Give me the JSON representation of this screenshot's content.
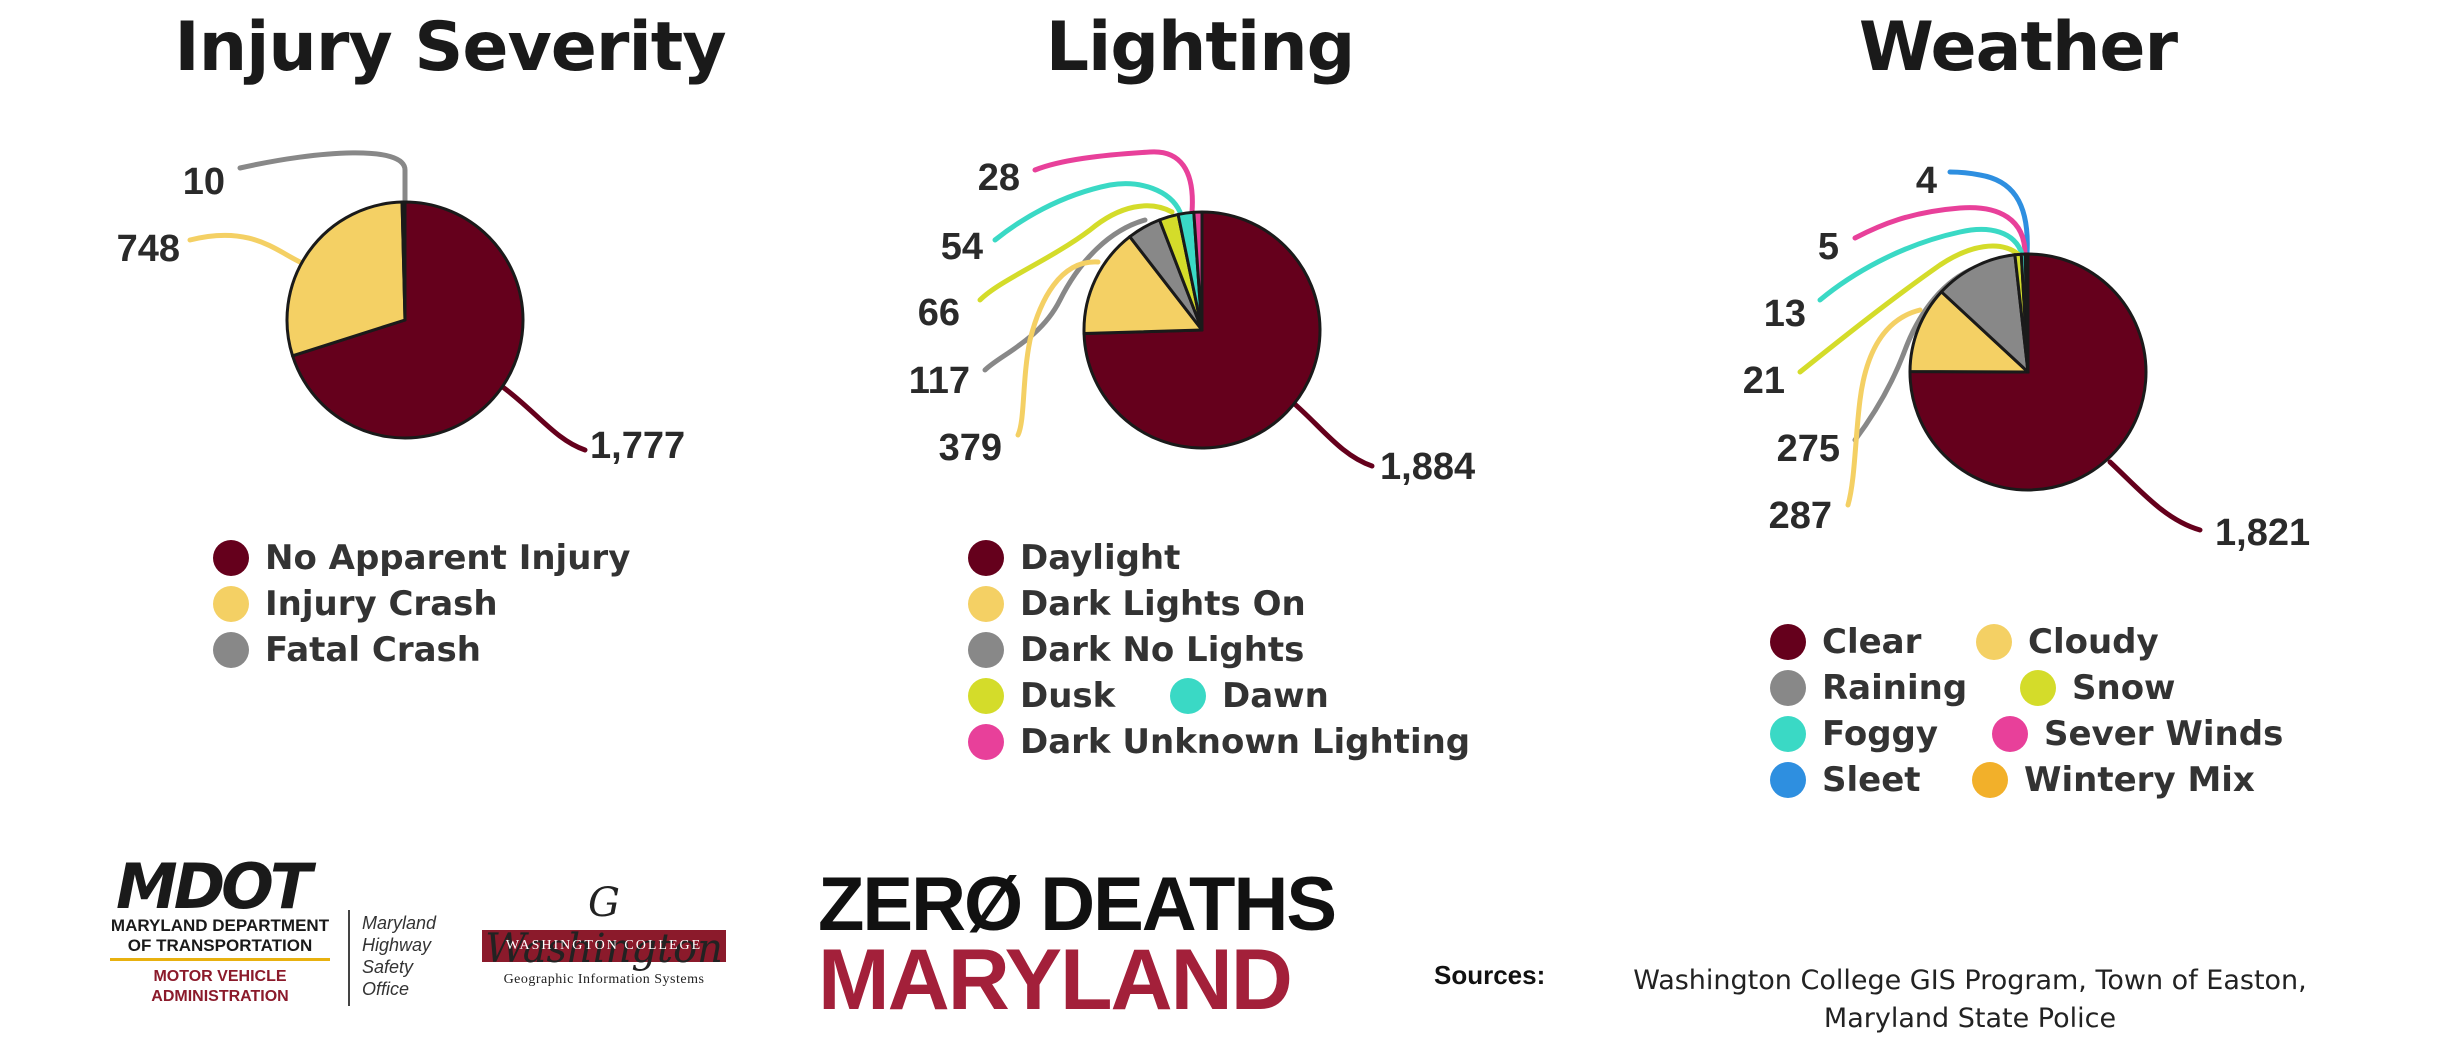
{
  "colors": {
    "maroon": "#65001c",
    "yellow": "#f4d064",
    "gray": "#888888",
    "lime": "#d4dc2a",
    "teal": "#3ad9c5",
    "pink": "#e8409a",
    "blue": "#2e8fe0",
    "orange": "#f2b02a"
  },
  "chart_data": [
    {
      "type": "pie",
      "title": "Injury Severity",
      "slices": [
        {
          "name": "No Apparent Injury",
          "value": 1777,
          "label": "1,777",
          "color": "#65001c"
        },
        {
          "name": "Injury Crash",
          "value": 748,
          "label": "748",
          "color": "#f4d064"
        },
        {
          "name": "Fatal Crash",
          "value": 10,
          "label": "10",
          "color": "#888888"
        }
      ]
    },
    {
      "type": "pie",
      "title": "Lighting",
      "slices": [
        {
          "name": "Daylight",
          "value": 1884,
          "label": "1,884",
          "color": "#65001c"
        },
        {
          "name": "Dark Lights On",
          "value": 379,
          "label": "379",
          "color": "#f4d064"
        },
        {
          "name": "Dark No Lights",
          "value": 117,
          "label": "117",
          "color": "#888888"
        },
        {
          "name": "Dusk",
          "value": 66,
          "label": "66",
          "color": "#d4dc2a"
        },
        {
          "name": "Dawn",
          "value": 54,
          "label": "54",
          "color": "#3ad9c5"
        },
        {
          "name": "Dark Unknown Lighting",
          "value": 28,
          "label": "28",
          "color": "#e8409a"
        }
      ]
    },
    {
      "type": "pie",
      "title": "Weather",
      "slices": [
        {
          "name": "Clear",
          "value": 1821,
          "label": "1,821",
          "color": "#65001c"
        },
        {
          "name": "Cloudy",
          "value": 287,
          "label": "287",
          "color": "#f4d064"
        },
        {
          "name": "Raining",
          "value": 275,
          "label": "275",
          "color": "#888888"
        },
        {
          "name": "Snow",
          "value": 21,
          "label": "21",
          "color": "#d4dc2a"
        },
        {
          "name": "Foggy",
          "value": 13,
          "label": "13",
          "color": "#3ad9c5"
        },
        {
          "name": "Sever Winds",
          "value": 5,
          "label": "5",
          "color": "#e8409a"
        },
        {
          "name": "Sleet",
          "value": 4,
          "label": "4",
          "color": "#2e8fe0"
        },
        {
          "name": "Wintery Mix",
          "value": 0,
          "label": "",
          "color": "#f2b02a"
        }
      ]
    }
  ],
  "legends": {
    "injury": [
      "No Apparent Injury",
      "Injury Crash",
      "Fatal Crash"
    ],
    "lighting": [
      "Daylight",
      "Dark Lights On",
      "Dark No Lights",
      "Dusk",
      "Dawn",
      "Dark Unknown Lighting"
    ],
    "weather": [
      "Clear",
      "Cloudy",
      "Raining",
      "Snow",
      "Foggy",
      "Sever Winds",
      "Sleet",
      "Wintery Mix"
    ]
  },
  "footer": {
    "mdot_logo": "MDOT",
    "mdot_line1": "MARYLAND DEPARTMENT",
    "mdot_line2": "OF TRANSPORTATION",
    "mdot_mva1": "MOTOR VEHICLE",
    "mdot_mva2": "ADMINISTRATION",
    "mdot_office": [
      "Maryland",
      "Highway",
      "Safety",
      "Office"
    ],
    "wc_signature": "G Washington",
    "wc_name": "WASHINGTON COLLEGE",
    "wc_gis": "Geographic Information Systems",
    "zd_line1": "ZERØ DEATHS",
    "zd_line2": "MARYLAND",
    "sources_label": "Sources:",
    "sources_text_1": "Washington College GIS Program, Town of Easton,",
    "sources_text_2": "Maryland State Police"
  }
}
